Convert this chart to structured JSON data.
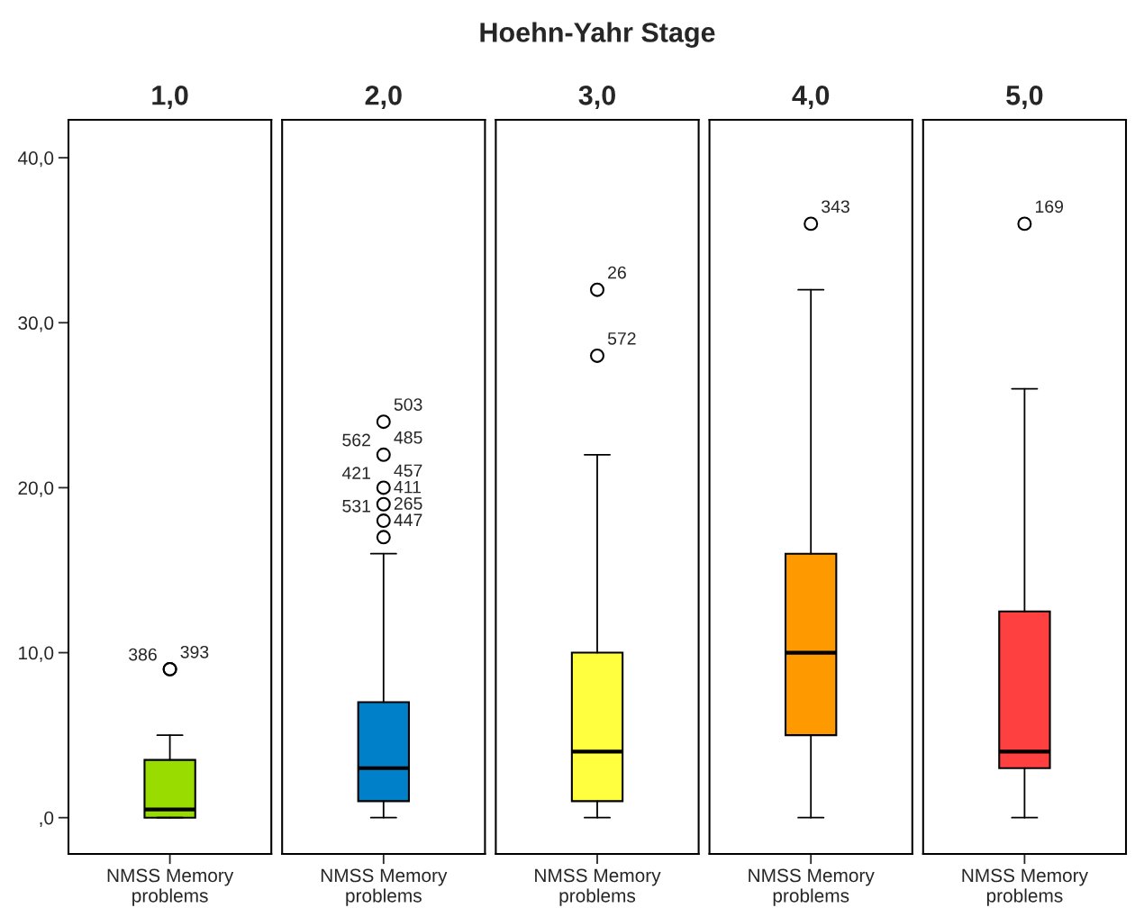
{
  "chart_data": [
    {
      "type": "box",
      "subtitle": "1,0",
      "categories": [
        "NMSS Memory\nproblems"
      ],
      "colors": [
        "#99dd00"
      ],
      "boxes": [
        {
          "low": 0,
          "q1": 0,
          "median": 0.5,
          "q3": 3.5,
          "high": 5,
          "outliers": [
            9,
            9
          ]
        }
      ],
      "ylim": [
        -2.2,
        42.3
      ],
      "yticks": [
        {
          "value": 0,
          "label": ",0"
        },
        {
          "value": 10,
          "label": "10,0"
        },
        {
          "value": 20,
          "label": "20,0"
        },
        {
          "value": 30,
          "label": "30,0"
        },
        {
          "value": 40,
          "label": "40,0"
        }
      ],
      "annotations": [
        "393",
        "386"
      ]
    },
    {
      "type": "box",
      "subtitle": "2,0",
      "categories": [
        "NMSS Memory\nproblems"
      ],
      "colors": [
        "#0080c8"
      ],
      "tick_labels": "x",
      "boxes": [
        {
          "low": 0,
          "q1": 1,
          "median": 3,
          "q3": 7,
          "high": 16,
          "outliers": [
            17,
            18,
            19,
            20,
            22,
            24
          ]
        }
      ],
      "ylim": [
        -2.2,
        42.3
      ],
      "annotations": [
        "503",
        "485",
        "562",
        "457",
        "421",
        "411",
        "265",
        "531",
        "447"
      ]
    },
    {
      "type": "box",
      "title": "Hoehn-Yahr Stage",
      "subtitle": "3,0",
      "categories": [
        "NMSS Memory\nproblems"
      ],
      "colors": [
        "#ffff40"
      ],
      "tick_labels": "x",
      "boxes": [
        {
          "low": 0,
          "q1": 1,
          "median": 4,
          "q3": 10,
          "high": 22,
          "outliers": [
            28,
            32
          ]
        }
      ],
      "ylim": [
        -2.2,
        42.3
      ],
      "annotations": [
        "26",
        "572"
      ]
    },
    {
      "type": "box",
      "subtitle": "4,0",
      "categories": [
        "NMSS Memory\nproblems"
      ],
      "colors": [
        "#ff9900"
      ],
      "tick_labels": "x",
      "boxes": [
        {
          "low": 0,
          "q1": 5,
          "median": 10,
          "q3": 16,
          "high": 32,
          "outliers": [
            36
          ]
        }
      ],
      "ylim": [
        -2.2,
        42.3
      ],
      "annotations": [
        "343"
      ]
    },
    {
      "type": "box",
      "subtitle": "5,0",
      "categories": [
        "NMSS Memory\nproblems"
      ],
      "colors": [
        "#ff4040"
      ],
      "tick_labels": "x",
      "boxes": [
        {
          "low": 0,
          "q1": 3,
          "median": 4,
          "q3": 12.5,
          "high": 26,
          "outliers": [
            36
          ]
        }
      ],
      "ylim": [
        -2.2,
        42.3
      ],
      "annotations": [
        "169"
      ]
    }
  ]
}
